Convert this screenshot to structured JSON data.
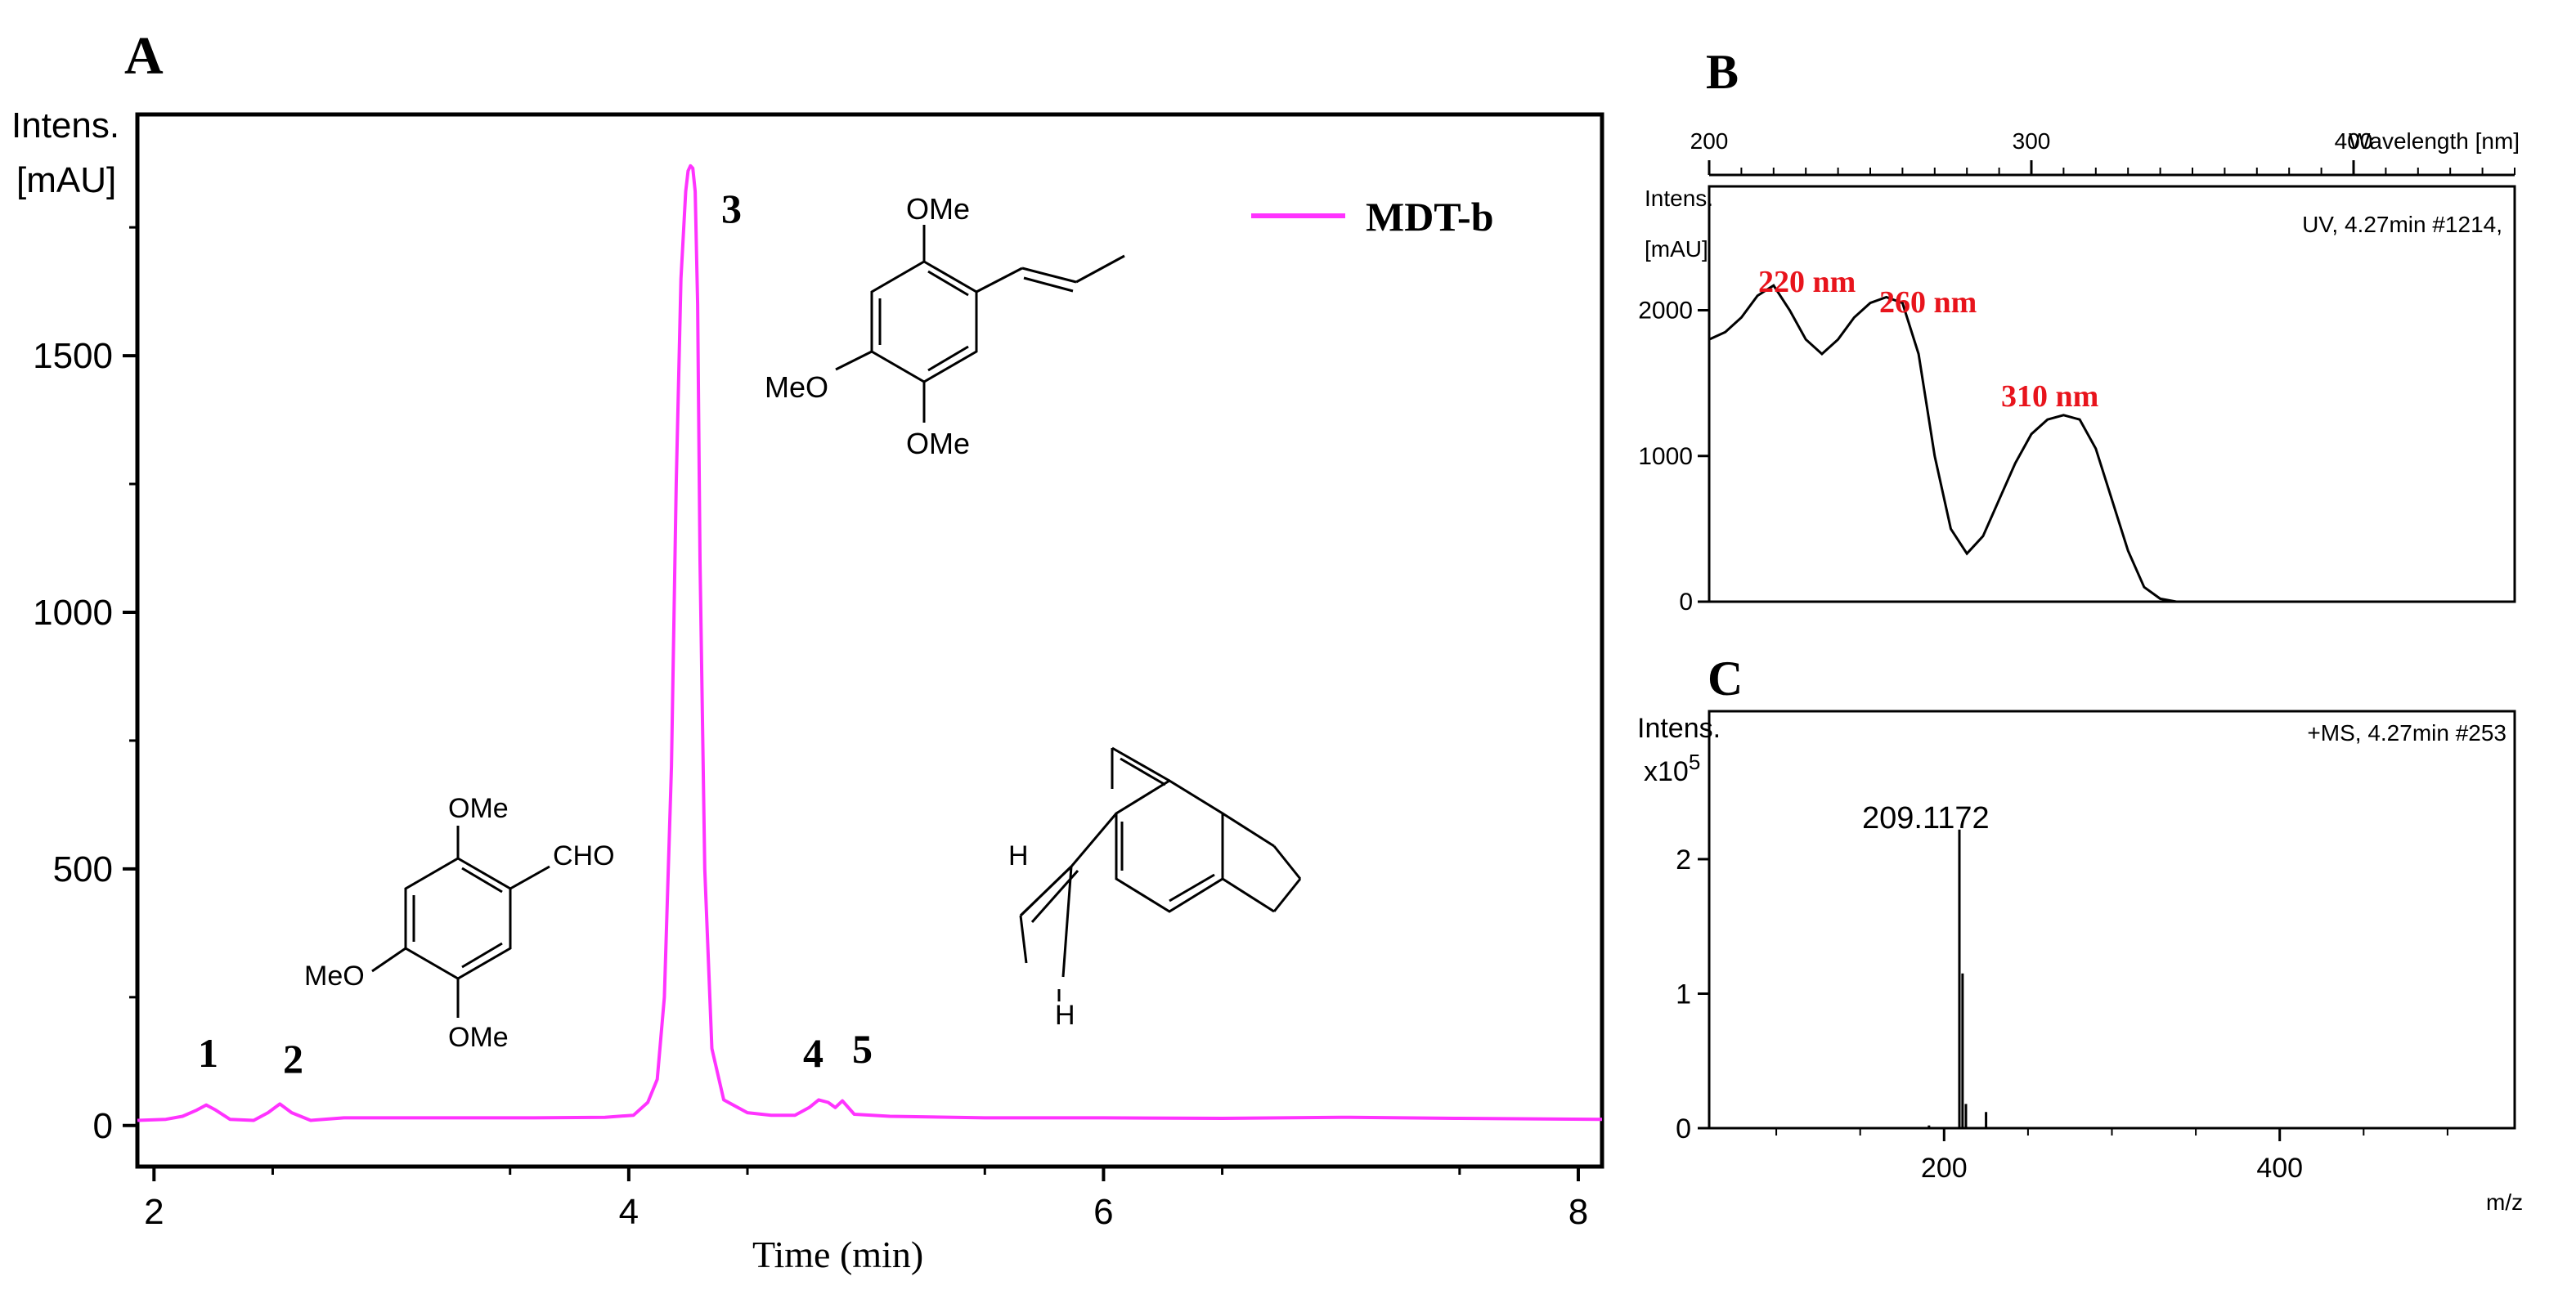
{
  "colors": {
    "trace_pink": "#ff33ff",
    "annotation_red": "#e8141c",
    "ink": "#000000"
  },
  "panelA": {
    "letter": "A",
    "y_title_line1": "Intens.",
    "y_title_line2": "[mAU]",
    "x_title": "Time (min)",
    "legend": "MDT-b",
    "peak_labels": [
      "1",
      "2",
      "3",
      "4",
      "5"
    ],
    "structures": {
      "s3": [
        "OMe",
        "MeO",
        "OMe"
      ],
      "s1": [
        "OMe",
        "CHO",
        "MeO",
        "OMe"
      ],
      "s5": [
        "H",
        "H"
      ]
    }
  },
  "panelB": {
    "letter": "B",
    "y_title_line1": "Intens.",
    "y_title_line2": "[mAU]",
    "x_title": "Wavelength [nm]",
    "info": "UV, 4.27min #1214,",
    "annotations": [
      "220 nm",
      "260 nm",
      "310 nm"
    ]
  },
  "panelC": {
    "letter": "C",
    "y_title_line1": "Intens.",
    "y_title_line2": "x10",
    "y_title_exp": "5",
    "x_title": "m/z",
    "info": "+MS, 4.27min #253",
    "peak_label": "209.1172"
  },
  "chart_data": [
    {
      "type": "line",
      "panel": "A",
      "xlim": [
        1.93,
        8.1
      ],
      "ylim": [
        -80,
        1970
      ],
      "xticks": [
        2,
        4,
        6,
        8
      ],
      "yticks": [
        0,
        500,
        1000,
        1500
      ],
      "series": [
        {
          "name": "MDT-b",
          "x": [
            1.93,
            2.05,
            2.12,
            2.18,
            2.22,
            2.26,
            2.32,
            2.42,
            2.48,
            2.53,
            2.58,
            2.66,
            2.8,
            3.0,
            3.3,
            3.6,
            3.9,
            4.02,
            4.08,
            4.12,
            4.15,
            4.18,
            4.2,
            4.22,
            4.24,
            4.25,
            4.26,
            4.27,
            4.28,
            4.29,
            4.3,
            4.32,
            4.35,
            4.4,
            4.5,
            4.6,
            4.7,
            4.76,
            4.8,
            4.84,
            4.87,
            4.9,
            4.95,
            5.1,
            5.5,
            6.0,
            6.5,
            7.0,
            7.5,
            8.1
          ],
          "y": [
            10,
            12,
            18,
            30,
            40,
            30,
            12,
            10,
            25,
            42,
            25,
            10,
            15,
            15,
            15,
            15,
            16,
            20,
            45,
            90,
            250,
            700,
            1250,
            1650,
            1820,
            1860,
            1870,
            1865,
            1820,
            1600,
            1100,
            500,
            150,
            50,
            25,
            20,
            20,
            35,
            50,
            45,
            35,
            48,
            22,
            18,
            15,
            15,
            14,
            16,
            14,
            12
          ]
        }
      ]
    },
    {
      "type": "line",
      "panel": "B",
      "xlim": [
        200,
        450
      ],
      "ylim": [
        0,
        2850
      ],
      "xticks": [
        200,
        300,
        400
      ],
      "yticks": [
        0,
        1000,
        2000
      ],
      "series": [
        {
          "x": [
            200,
            205,
            210,
            215,
            220,
            225,
            230,
            235,
            240,
            245,
            250,
            255,
            260,
            265,
            270,
            275,
            280,
            285,
            290,
            295,
            300,
            305,
            310,
            315,
            320,
            325,
            330,
            335,
            340,
            345,
            350
          ],
          "y": [
            1800,
            1850,
            1950,
            2100,
            2170,
            2000,
            1800,
            1700,
            1800,
            1950,
            2050,
            2090,
            2050,
            1700,
            1000,
            500,
            330,
            450,
            700,
            950,
            1150,
            1250,
            1280,
            1250,
            1050,
            700,
            350,
            100,
            20,
            0,
            0
          ]
        }
      ]
    },
    {
      "type": "bar",
      "panel": "C",
      "xlim": [
        60,
        540
      ],
      "ylim": [
        0,
        3.1
      ],
      "xticks": [
        200,
        400
      ],
      "yticks": [
        0,
        1,
        2
      ],
      "peaks": [
        {
          "mz": 191,
          "intensity": 0.02
        },
        {
          "mz": 209.1172,
          "intensity": 2.22
        },
        {
          "mz": 211,
          "intensity": 1.15
        },
        {
          "mz": 213,
          "intensity": 0.18
        },
        {
          "mz": 225,
          "intensity": 0.12
        }
      ]
    }
  ]
}
